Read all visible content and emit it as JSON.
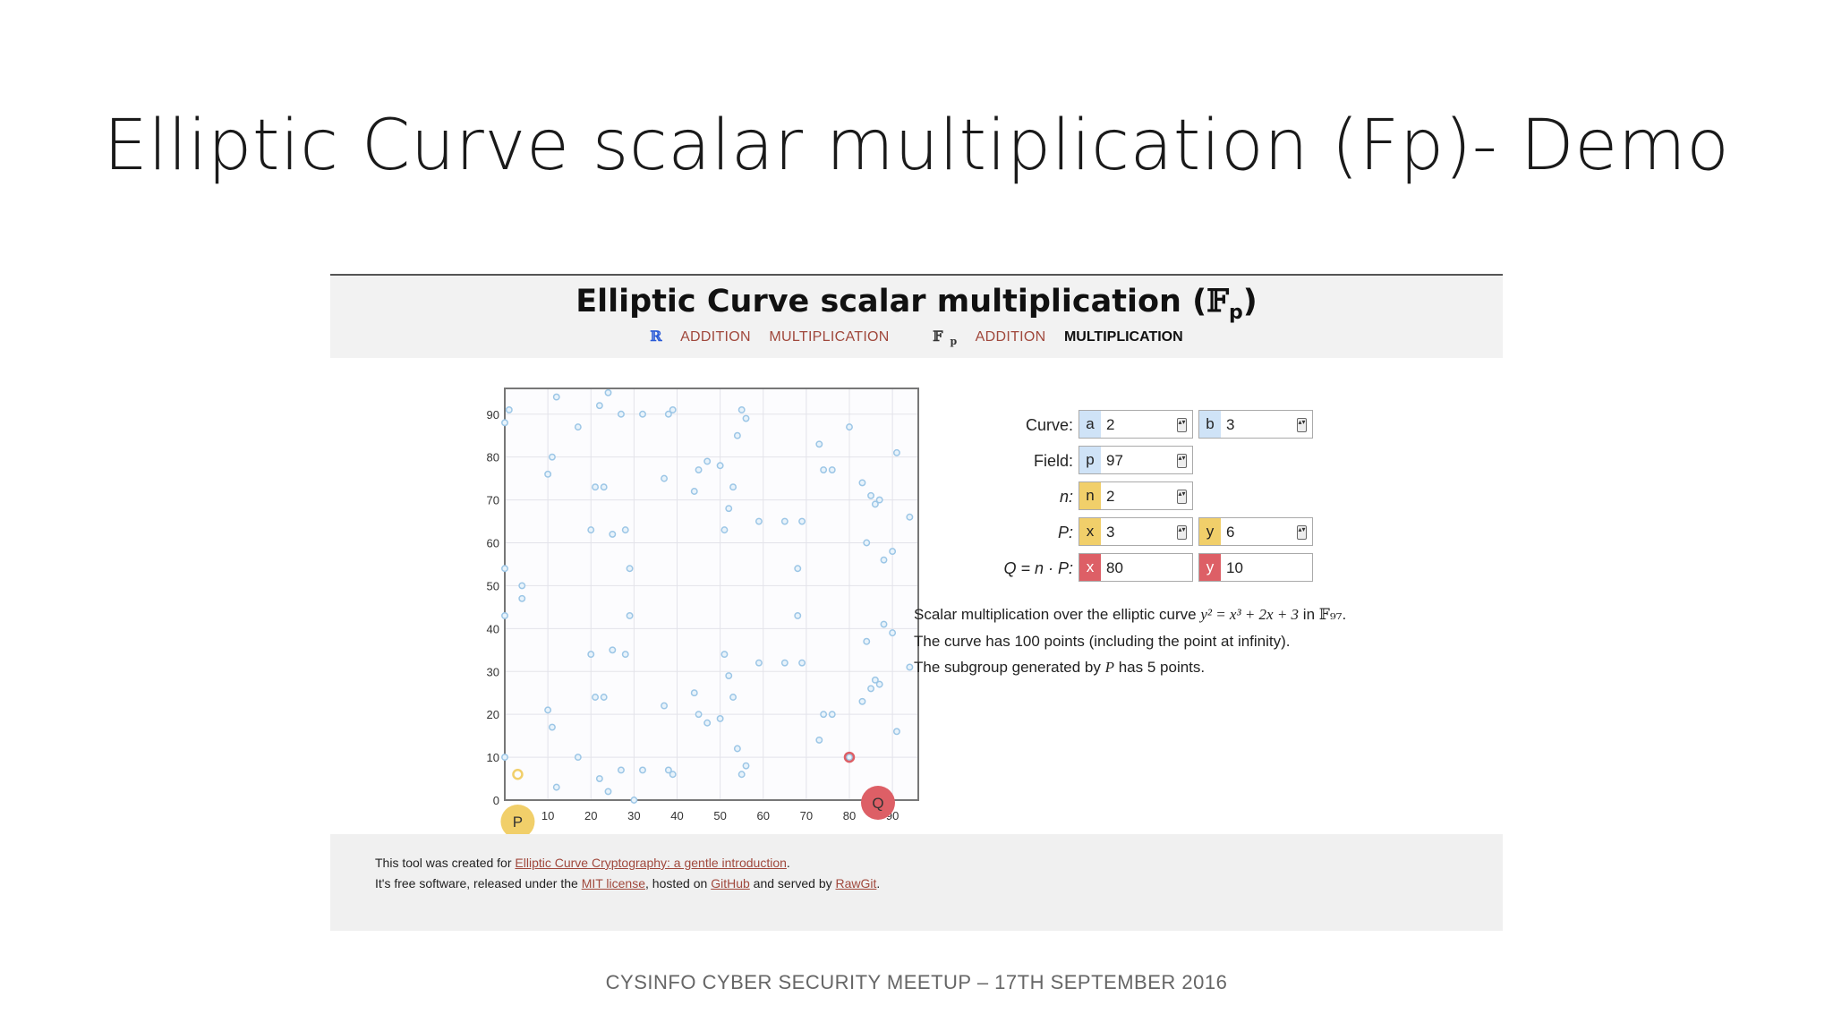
{
  "slide": {
    "title": "Elliptic Curve scalar multiplication (Fp)- Demo",
    "footer": "CYSINFO CYBER SECURITY MEETUP – 17TH SEPTEMBER 2016"
  },
  "app": {
    "title": "Elliptic Curve scalar multiplication (",
    "title_field": "𝔽",
    "title_sub": "p",
    "title_close": ")",
    "nav": {
      "real_symbol": "ℝ",
      "real_addition": "ADDITION",
      "real_multiplication": "MULTIPLICATION",
      "fp_symbol": "𝔽",
      "fp_sub": "p",
      "fp_addition": "ADDITION",
      "fp_multiplication": "MULTIPLICATION"
    },
    "form": {
      "curve_label": "Curve:",
      "a_tag": "a",
      "a_value": "2",
      "b_tag": "b",
      "b_value": "3",
      "field_label": "Field:",
      "p_tag": "p",
      "p_value": "97",
      "n_label": "n:",
      "n_tag": "n",
      "n_value": "2",
      "P_label": "P:",
      "px_tag": "x",
      "px_value": "3",
      "py_tag": "y",
      "py_value": "6",
      "Q_label": "Q = n · P:",
      "qx_tag": "x",
      "qx_value": "80",
      "qy_tag": "y",
      "qy_value": "10"
    },
    "description": {
      "line1_pre": "Scalar multiplication over the elliptic curve ",
      "line1_eq": "y² = x³ + 2x + 3",
      "line1_mid": " in ",
      "line1_field": "𝔽₉₇",
      "line1_end": ".",
      "line2": "The curve has 100 points (including the point at infinity).",
      "line3_pre": "The subgroup generated by ",
      "line3_P": "P",
      "line3_end": " has 5 points."
    },
    "footer": {
      "line1_pre": "This tool was created for ",
      "line1_link": "Elliptic Curve Cryptography: a gentle introduction",
      "line1_end": ".",
      "line2_pre": "It's free software, released under the ",
      "line2_mit": "MIT license",
      "line2_mid1": ", hosted on ",
      "line2_github": "GitHub",
      "line2_mid2": " and served by ",
      "line2_rawgit": "RawGit",
      "line2_end": "."
    }
  },
  "chart_data": {
    "type": "scatter",
    "xlim": [
      0,
      96
    ],
    "ylim": [
      0,
      96
    ],
    "x_ticks": [
      0,
      10,
      20,
      30,
      40,
      50,
      60,
      70,
      80,
      90
    ],
    "y_ticks": [
      0,
      10,
      20,
      30,
      40,
      50,
      60,
      70,
      80,
      90
    ],
    "x_tick_labels": [
      "10",
      "20",
      "30",
      "40",
      "50",
      "60",
      "70",
      "80",
      "90"
    ],
    "y_tick_labels": [
      "0",
      "10",
      "20",
      "30",
      "40",
      "50",
      "60",
      "70",
      "80",
      "90"
    ],
    "grid": true,
    "point_color": "#9cc6e6",
    "points": [
      [
        0,
        10
      ],
      [
        0,
        43
      ],
      [
        0,
        54
      ],
      [
        0,
        88
      ],
      [
        1,
        91
      ],
      [
        4,
        47
      ],
      [
        4,
        50
      ],
      [
        10,
        21
      ],
      [
        10,
        76
      ],
      [
        11,
        17
      ],
      [
        11,
        80
      ],
      [
        12,
        3
      ],
      [
        12,
        94
      ],
      [
        17,
        10
      ],
      [
        17,
        87
      ],
      [
        20,
        34
      ],
      [
        20,
        63
      ],
      [
        21,
        24
      ],
      [
        21,
        73
      ],
      [
        22,
        5
      ],
      [
        22,
        92
      ],
      [
        23,
        24
      ],
      [
        23,
        73
      ],
      [
        24,
        2
      ],
      [
        24,
        95
      ],
      [
        25,
        35
      ],
      [
        25,
        62
      ],
      [
        27,
        7
      ],
      [
        27,
        90
      ],
      [
        28,
        34
      ],
      [
        28,
        63
      ],
      [
        29,
        43
      ],
      [
        29,
        54
      ],
      [
        30,
        0
      ],
      [
        32,
        7
      ],
      [
        32,
        90
      ],
      [
        37,
        22
      ],
      [
        37,
        75
      ],
      [
        38,
        7
      ],
      [
        38,
        90
      ],
      [
        39,
        6
      ],
      [
        39,
        91
      ],
      [
        44,
        25
      ],
      [
        44,
        72
      ],
      [
        45,
        20
      ],
      [
        45,
        77
      ],
      [
        47,
        18
      ],
      [
        47,
        79
      ],
      [
        50,
        19
      ],
      [
        50,
        78
      ],
      [
        51,
        34
      ],
      [
        51,
        63
      ],
      [
        52,
        29
      ],
      [
        52,
        68
      ],
      [
        53,
        24
      ],
      [
        53,
        73
      ],
      [
        54,
        12
      ],
      [
        54,
        85
      ],
      [
        55,
        6
      ],
      [
        55,
        91
      ],
      [
        56,
        8
      ],
      [
        56,
        89
      ],
      [
        59,
        32
      ],
      [
        59,
        65
      ],
      [
        65,
        32
      ],
      [
        65,
        65
      ],
      [
        68,
        43
      ],
      [
        68,
        54
      ],
      [
        69,
        32
      ],
      [
        69,
        65
      ],
      [
        73,
        14
      ],
      [
        73,
        83
      ],
      [
        74,
        20
      ],
      [
        74,
        77
      ],
      [
        76,
        20
      ],
      [
        76,
        77
      ],
      [
        80,
        10
      ],
      [
        80,
        87
      ],
      [
        83,
        23
      ],
      [
        83,
        74
      ],
      [
        84,
        37
      ],
      [
        84,
        60
      ],
      [
        85,
        26
      ],
      [
        85,
        71
      ],
      [
        86,
        28
      ],
      [
        86,
        69
      ],
      [
        87,
        27
      ],
      [
        87,
        70
      ],
      [
        88,
        41
      ],
      [
        88,
        56
      ],
      [
        90,
        39
      ],
      [
        90,
        58
      ],
      [
        91,
        16
      ],
      [
        91,
        81
      ],
      [
        94,
        31
      ],
      [
        94,
        66
      ]
    ],
    "P": {
      "label": "P",
      "x": 3,
      "y": 6,
      "color": "#f1cf6a"
    },
    "Q": {
      "label": "Q",
      "x": 80,
      "y": 10,
      "color": "#dd5f66"
    }
  }
}
